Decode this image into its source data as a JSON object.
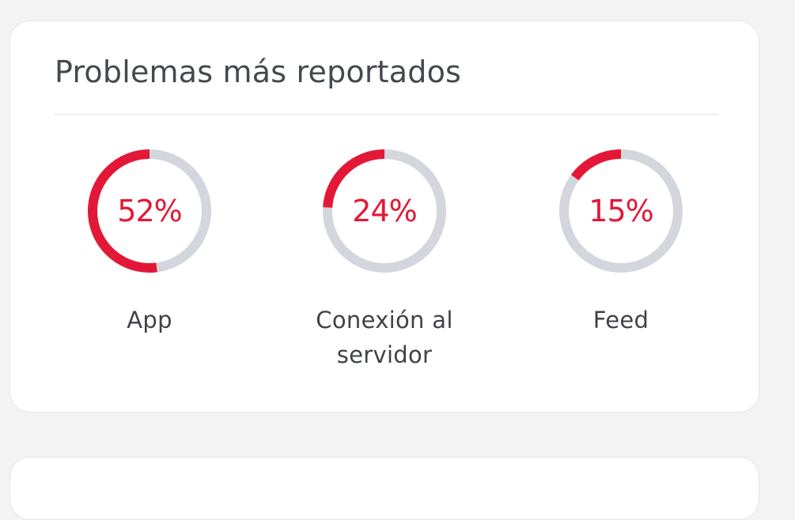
{
  "colors": {
    "accent": "#e31837",
    "track": "#d3d6dd",
    "text": "#3f4247"
  },
  "card": {
    "title": "Problemas más reportados"
  },
  "metrics": [
    {
      "percent": 52,
      "value": "52%",
      "label_lines": [
        "App"
      ]
    },
    {
      "percent": 24,
      "value": "24%",
      "label_lines": [
        "Conexión al",
        "servidor"
      ]
    },
    {
      "percent": 15,
      "value": "15%",
      "label_lines": [
        "Feed"
      ]
    }
  ]
}
